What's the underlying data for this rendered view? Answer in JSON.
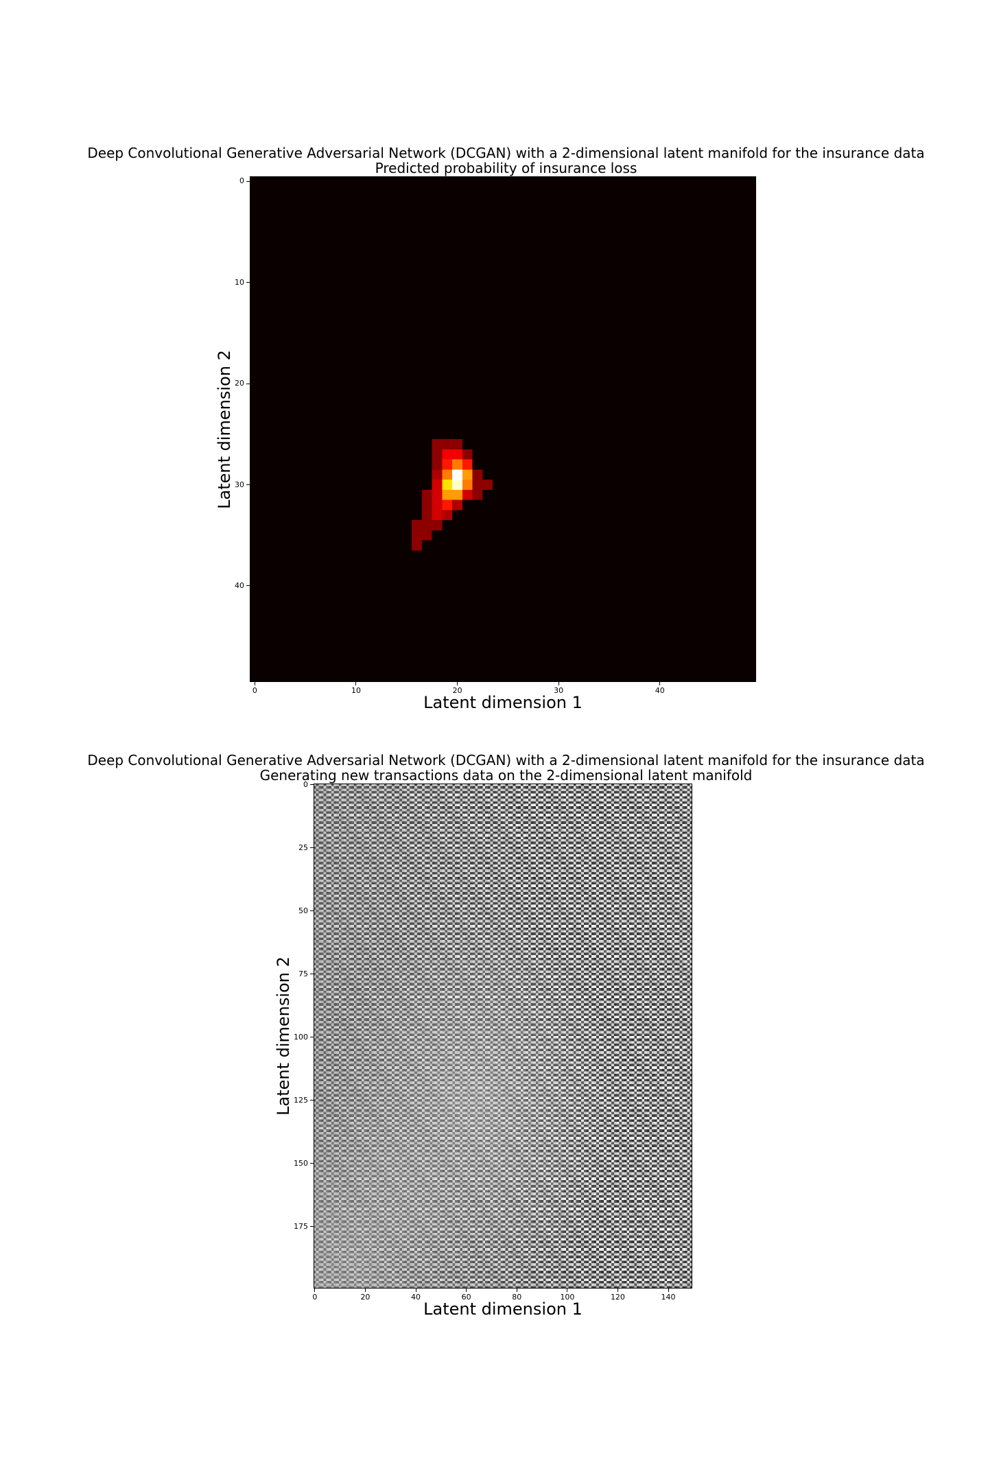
{
  "chart_data": [
    {
      "type": "heatmap",
      "title": "Deep Convolutional Generative Adversarial Network (DCGAN) with a 2-dimensional latent manifold for the insurance data",
      "subtitle": "Predicted probability of insurance loss",
      "xlabel": "Latent dimension 1",
      "ylabel": "Latent dimension 2",
      "xlim": [
        -0.5,
        49.5
      ],
      "ylim": [
        49.5,
        -0.5
      ],
      "xticks": [
        0,
        10,
        20,
        30,
        40
      ],
      "yticks": [
        0,
        10,
        20,
        30,
        40
      ],
      "grid": false,
      "colormap": "hot",
      "background_value": 0,
      "cells": [
        {
          "x": 18,
          "y": 26,
          "v": 0.2
        },
        {
          "x": 19,
          "y": 26,
          "v": 0.2
        },
        {
          "x": 20,
          "y": 26,
          "v": 0.2
        },
        {
          "x": 18,
          "y": 27,
          "v": 0.2
        },
        {
          "x": 19,
          "y": 27,
          "v": 0.35
        },
        {
          "x": 20,
          "y": 27,
          "v": 0.35
        },
        {
          "x": 21,
          "y": 27,
          "v": 0.2
        },
        {
          "x": 18,
          "y": 28,
          "v": 0.2
        },
        {
          "x": 19,
          "y": 28,
          "v": 0.4
        },
        {
          "x": 20,
          "y": 28,
          "v": 0.55
        },
        {
          "x": 21,
          "y": 28,
          "v": 0.4
        },
        {
          "x": 18,
          "y": 29,
          "v": 0.25
        },
        {
          "x": 19,
          "y": 29,
          "v": 0.55
        },
        {
          "x": 20,
          "y": 29,
          "v": 1.0
        },
        {
          "x": 21,
          "y": 29,
          "v": 0.6
        },
        {
          "x": 22,
          "y": 29,
          "v": 0.2
        },
        {
          "x": 18,
          "y": 30,
          "v": 0.3
        },
        {
          "x": 19,
          "y": 30,
          "v": 0.7
        },
        {
          "x": 20,
          "y": 30,
          "v": 0.95
        },
        {
          "x": 21,
          "y": 30,
          "v": 0.55
        },
        {
          "x": 22,
          "y": 30,
          "v": 0.2
        },
        {
          "x": 23,
          "y": 30,
          "v": 0.2
        },
        {
          "x": 17,
          "y": 31,
          "v": 0.2
        },
        {
          "x": 18,
          "y": 31,
          "v": 0.3
        },
        {
          "x": 19,
          "y": 31,
          "v": 0.6
        },
        {
          "x": 20,
          "y": 31,
          "v": 0.6
        },
        {
          "x": 21,
          "y": 31,
          "v": 0.3
        },
        {
          "x": 22,
          "y": 31,
          "v": 0.2
        },
        {
          "x": 17,
          "y": 32,
          "v": 0.2
        },
        {
          "x": 18,
          "y": 32,
          "v": 0.3
        },
        {
          "x": 19,
          "y": 32,
          "v": 0.4
        },
        {
          "x": 20,
          "y": 32,
          "v": 0.25
        },
        {
          "x": 17,
          "y": 33,
          "v": 0.2
        },
        {
          "x": 18,
          "y": 33,
          "v": 0.3
        },
        {
          "x": 19,
          "y": 33,
          "v": 0.25
        },
        {
          "x": 16,
          "y": 34,
          "v": 0.2
        },
        {
          "x": 17,
          "y": 34,
          "v": 0.2
        },
        {
          "x": 18,
          "y": 34,
          "v": 0.2
        },
        {
          "x": 16,
          "y": 35,
          "v": 0.2
        },
        {
          "x": 17,
          "y": 35,
          "v": 0.2
        },
        {
          "x": 16,
          "y": 36,
          "v": 0.2
        }
      ]
    },
    {
      "type": "heatmap",
      "title": "Deep Convolutional Generative Adversarial Network (DCGAN) with a 2-dimensional latent manifold for the insurance data",
      "subtitle": "Generating new transactions data on the 2-dimensional latent manifold",
      "xlabel": "Latent dimension 1",
      "ylabel": "Latent dimension 2",
      "xlim": [
        -0.5,
        149.5
      ],
      "ylim": [
        199.5,
        -0.5
      ],
      "xticks": [
        0,
        20,
        40,
        60,
        80,
        100,
        120,
        140
      ],
      "yticks": [
        0,
        25,
        50,
        75,
        100,
        125,
        150,
        175
      ],
      "grid": false,
      "colormap": "gray",
      "grid_cells": [
        50,
        50
      ],
      "cell_size": [
        3,
        4
      ]
    }
  ],
  "page_size": [
    1440,
    2160
  ]
}
